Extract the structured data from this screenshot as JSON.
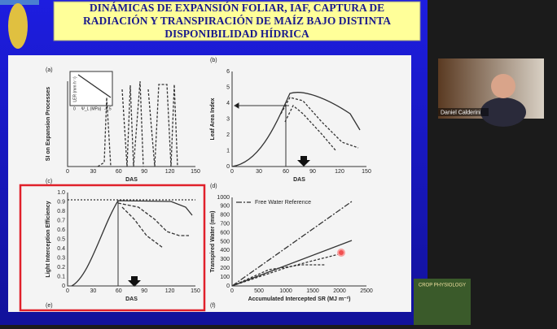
{
  "slide": {
    "title_lines": [
      "DINÁMICAS DE EXPANSIÓN FOLIAR, IAF, CAPTURA DE",
      "RADIACIÓN Y TRANSPIRACIÓN DE MAÍZ BAJO DISTINTA",
      "DISPONIBILIDAD HÍDRICA"
    ],
    "panels": [
      {
        "label": "(a)",
        "ylabel": "SI on Expansion Processes",
        "xlabel": "DAS",
        "xticks": [
          "0",
          "30",
          "60",
          "90",
          "120",
          "150"
        ],
        "yticks": [],
        "inset": {
          "ylabel": "LER (mm h⁻¹)",
          "xlabel": "Ψ_L (MPa)",
          "ticks": [
            "0",
            "-1.5"
          ]
        }
      },
      {
        "label": "(b)",
        "ylabel": "Leaf Area Index",
        "xlabel": "DAS",
        "xticks": [
          "0",
          "30",
          "60",
          "90",
          "120",
          "150"
        ],
        "yticks": [
          "0",
          "1",
          "2",
          "3",
          "4",
          "5",
          "6"
        ]
      },
      {
        "label": "(c)",
        "bottom_label": "(e)",
        "ylabel": "Light Interception Efficiency",
        "xlabel": "DAS",
        "xticks": [
          "0",
          "30",
          "60",
          "90",
          "120",
          "150"
        ],
        "yticks": [
          "0",
          "0.1",
          "0.2",
          "0.3",
          "0.4",
          "0.5",
          "0.6",
          "0.7",
          "0.8",
          "0.9",
          "1.0"
        ]
      },
      {
        "label": "(d)",
        "bottom_label": "(f)",
        "ylabel": "Transpired Water (mm)",
        "xlabel": "Accumulated Intercepted SR (MJ m⁻²)",
        "xticks": [
          "0",
          "500",
          "1000",
          "1500",
          "2000",
          "2500"
        ],
        "yticks": [
          "0",
          "100",
          "200",
          "300",
          "400",
          "500",
          "600",
          "700",
          "800",
          "900",
          "1000"
        ],
        "legend": "Free Water Reference"
      }
    ]
  },
  "participant": {
    "name": "Daniel Calderini"
  },
  "book": {
    "title": "CROP PHYSIOLOGY"
  }
}
